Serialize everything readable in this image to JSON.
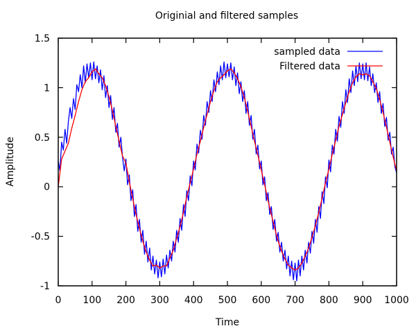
{
  "chart_data": {
    "type": "line",
    "title": "Originial and filtered samples",
    "xlabel": "Time",
    "ylabel": "Amplitude",
    "xlim": [
      0,
      1000
    ],
    "ylim": [
      -1,
      1.5
    ],
    "xticks": [
      0,
      100,
      200,
      300,
      400,
      500,
      600,
      700,
      800,
      900,
      1000
    ],
    "yticks": [
      -1,
      -0.5,
      0,
      0.5,
      1,
      1.5
    ],
    "xtick_labels": [
      "0",
      "100",
      "200",
      "300",
      "400",
      "500",
      "600",
      "700",
      "800",
      "900",
      "1000"
    ],
    "ytick_labels": [
      "-1",
      "-0.5",
      "0",
      "0.5",
      "1",
      "1.5"
    ],
    "grid": false,
    "legend_position": "top-right",
    "series": [
      {
        "name": "sampled data",
        "color": "#0000ff",
        "x_step": 5,
        "values": [
          0.26,
          0.16,
          0.45,
          0.37,
          0.58,
          0.44,
          0.66,
          0.8,
          0.69,
          0.89,
          0.78,
          1.03,
          0.96,
          1.13,
          1.0,
          1.22,
          1.05,
          1.24,
          1.1,
          1.25,
          1.08,
          1.26,
          1.09,
          1.22,
          1.05,
          1.18,
          0.98,
          1.12,
          0.9,
          1.02,
          0.8,
          0.92,
          0.68,
          0.8,
          0.55,
          0.64,
          0.4,
          0.5,
          0.3,
          0.16,
          0.28,
          0.02,
          0.12,
          -0.14,
          -0.03,
          -0.3,
          -0.18,
          -0.45,
          -0.33,
          -0.56,
          -0.44,
          -0.68,
          -0.55,
          -0.76,
          -0.62,
          -0.84,
          -0.7,
          -0.88,
          -0.74,
          -0.92,
          -0.76,
          -0.91,
          -0.73,
          -0.88,
          -0.69,
          -0.82,
          -0.64,
          -0.75,
          -0.55,
          -0.66,
          -0.44,
          -0.56,
          -0.32,
          -0.44,
          -0.18,
          -0.3,
          -0.04,
          -0.14,
          0.11,
          0.01,
          0.26,
          0.17,
          0.43,
          0.34,
          0.57,
          0.48,
          0.72,
          0.62,
          0.86,
          0.75,
          0.97,
          0.86,
          1.08,
          0.96,
          1.16,
          1.03,
          1.22,
          1.08,
          1.26,
          1.1,
          1.24,
          1.11,
          1.25,
          1.08,
          1.21,
          1.02,
          1.15,
          0.94,
          1.06,
          0.86,
          0.97,
          0.74,
          0.86,
          0.62,
          0.72,
          0.48,
          0.58,
          0.33,
          0.42,
          0.18,
          0.26,
          0.02,
          0.1,
          -0.14,
          -0.06,
          -0.28,
          -0.2,
          -0.43,
          -0.33,
          -0.55,
          -0.46,
          -0.66,
          -0.56,
          -0.75,
          -0.64,
          -0.83,
          -0.7,
          -0.9,
          -0.75,
          -0.94,
          -0.77,
          -0.95,
          -0.74,
          -0.9,
          -0.7,
          -0.84,
          -0.64,
          -0.77,
          -0.56,
          -0.67,
          -0.45,
          -0.57,
          -0.33,
          -0.46,
          -0.2,
          -0.32,
          -0.05,
          -0.17,
          0.1,
          -0.01,
          0.27,
          0.15,
          0.42,
          0.33,
          0.58,
          0.46,
          0.71,
          0.6,
          0.86,
          0.74,
          0.98,
          0.85,
          1.09,
          0.95,
          1.17,
          1.02,
          1.22,
          1.06,
          1.25,
          1.09,
          1.24,
          1.08,
          1.25,
          1.07,
          1.21,
          1.02,
          1.14,
          0.95,
          1.05,
          0.85,
          0.96,
          0.74,
          0.84,
          0.61,
          0.7,
          0.47,
          0.55,
          0.33,
          0.4,
          0.2,
          0.14
        ]
      },
      {
        "name": "Filtered data",
        "color": "#ff0000",
        "x_step": 10,
        "values": [
          0,
          0.28,
          0.36,
          0.44,
          0.59,
          0.72,
          0.86,
          0.98,
          1.06,
          1.1,
          1.16,
          1.19,
          1.14,
          1.1,
          1.02,
          0.91,
          0.77,
          0.61,
          0.46,
          0.31,
          0.24,
          0.05,
          -0.12,
          -0.28,
          -0.42,
          -0.55,
          -0.66,
          -0.74,
          -0.8,
          -0.79,
          -0.82,
          -0.8,
          -0.8,
          -0.72,
          -0.64,
          -0.52,
          -0.4,
          -0.26,
          -0.1,
          0.04,
          0.18,
          0.33,
          0.46,
          0.6,
          0.73,
          0.86,
          0.97,
          1.06,
          1.1,
          1.13,
          1.17,
          1.19,
          1.15,
          1.09,
          1.01,
          0.9,
          0.76,
          0.61,
          0.46,
          0.32,
          0.17,
          0.02,
          -0.14,
          -0.28,
          -0.42,
          -0.55,
          -0.65,
          -0.73,
          -0.79,
          -0.82,
          -0.84,
          -0.82,
          -0.77,
          -0.7,
          -0.62,
          -0.51,
          -0.39,
          -0.26,
          -0.11,
          0.04,
          0.18,
          0.33,
          0.47,
          0.61,
          0.73,
          0.85,
          0.96,
          1.05,
          1.11,
          1.14,
          1.13,
          1.14,
          1.12,
          1.06,
          0.99,
          0.88,
          0.75,
          0.6,
          0.45,
          0.3,
          0.16
        ]
      }
    ]
  }
}
